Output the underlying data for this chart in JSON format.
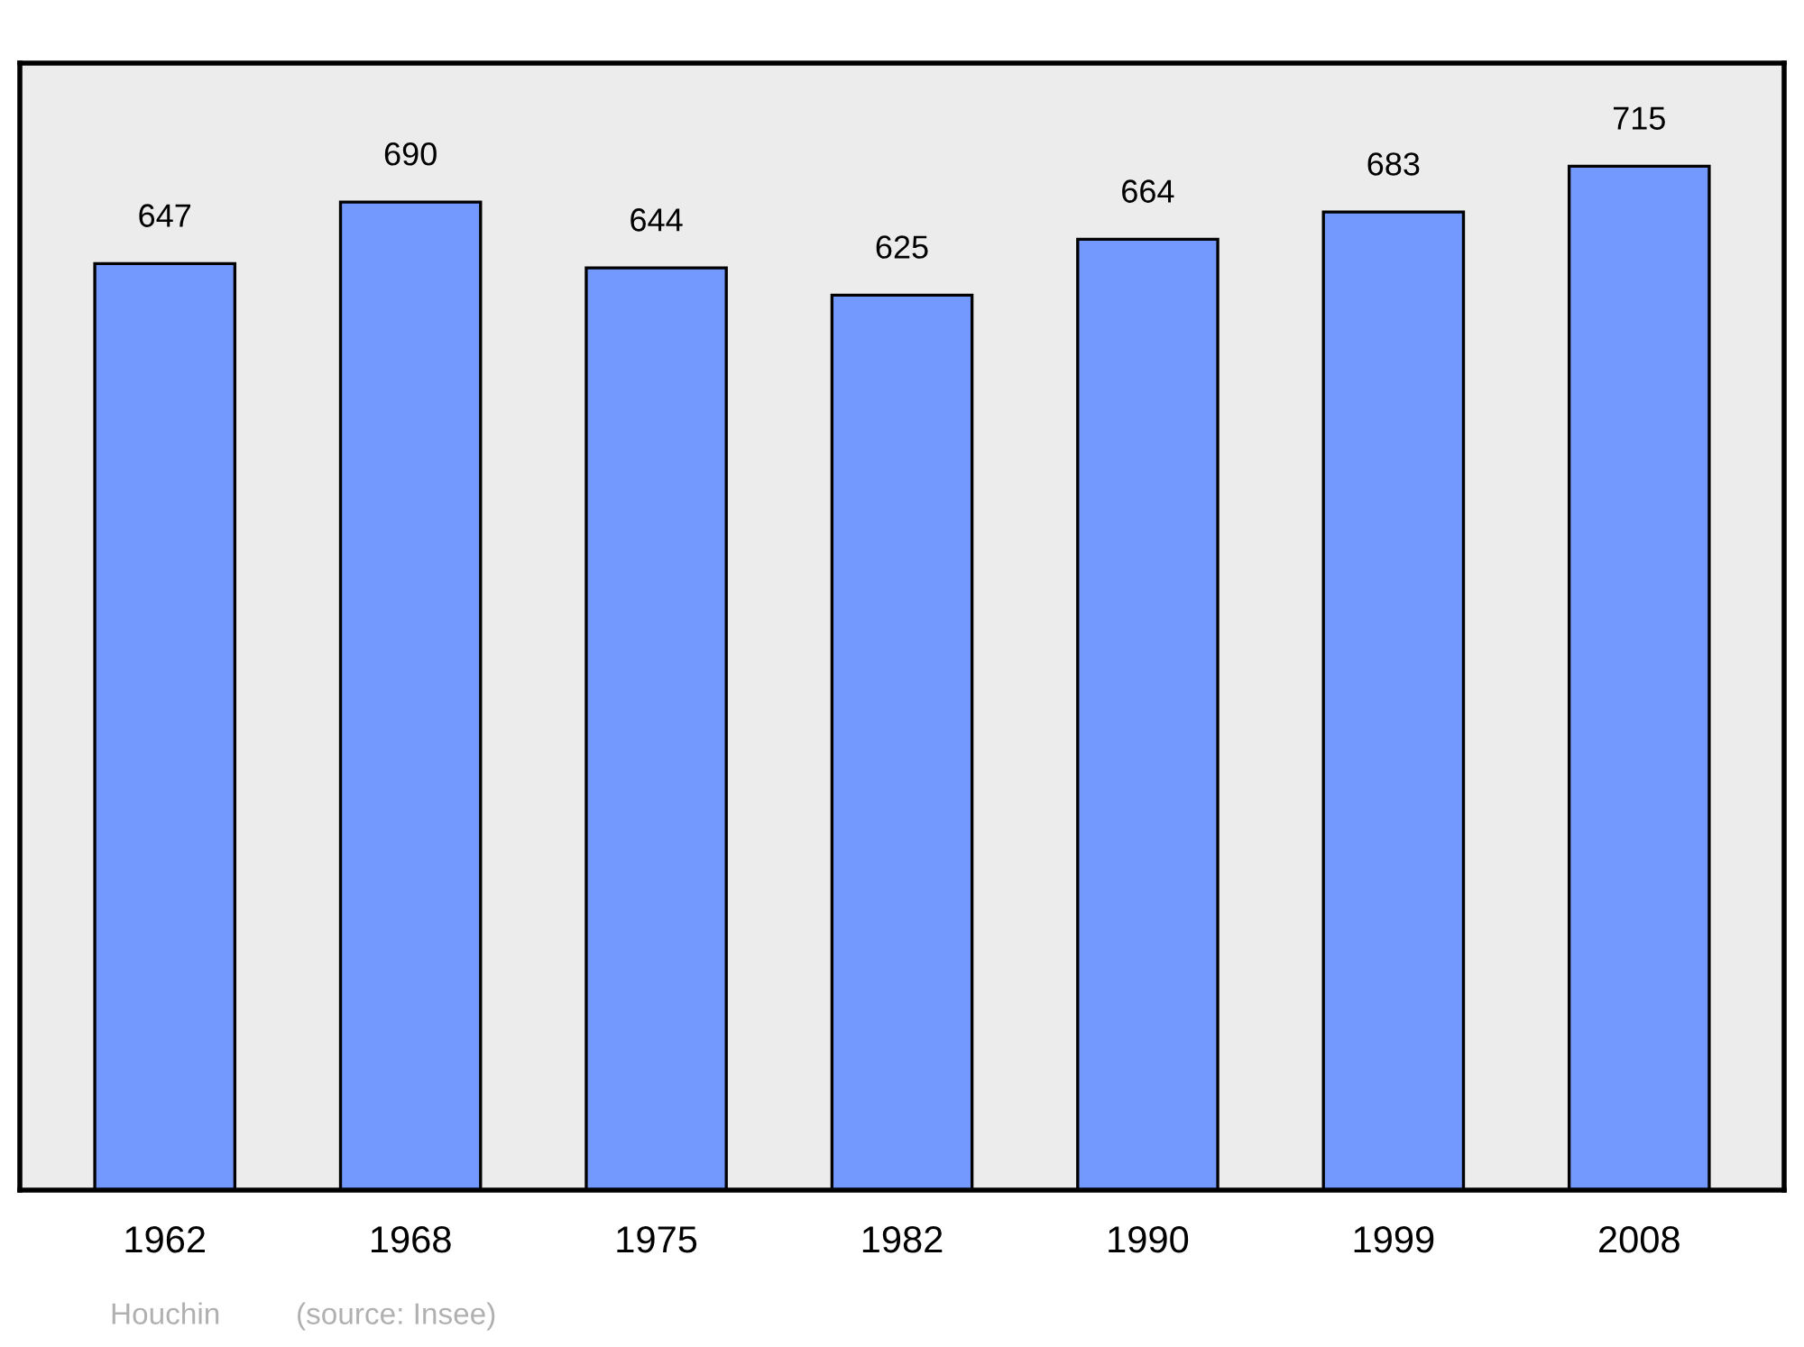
{
  "chart_data": {
    "type": "bar",
    "categories": [
      "1962",
      "1968",
      "1975",
      "1982",
      "1990",
      "1999",
      "2008"
    ],
    "values": [
      647,
      690,
      644,
      625,
      664,
      683,
      715
    ],
    "color": "#7399ff",
    "ylim": [
      0,
      787
    ],
    "data_labels": true,
    "grid": false,
    "legend": false,
    "annotations": [
      "Houchin",
      "(source: Insee)"
    ]
  }
}
